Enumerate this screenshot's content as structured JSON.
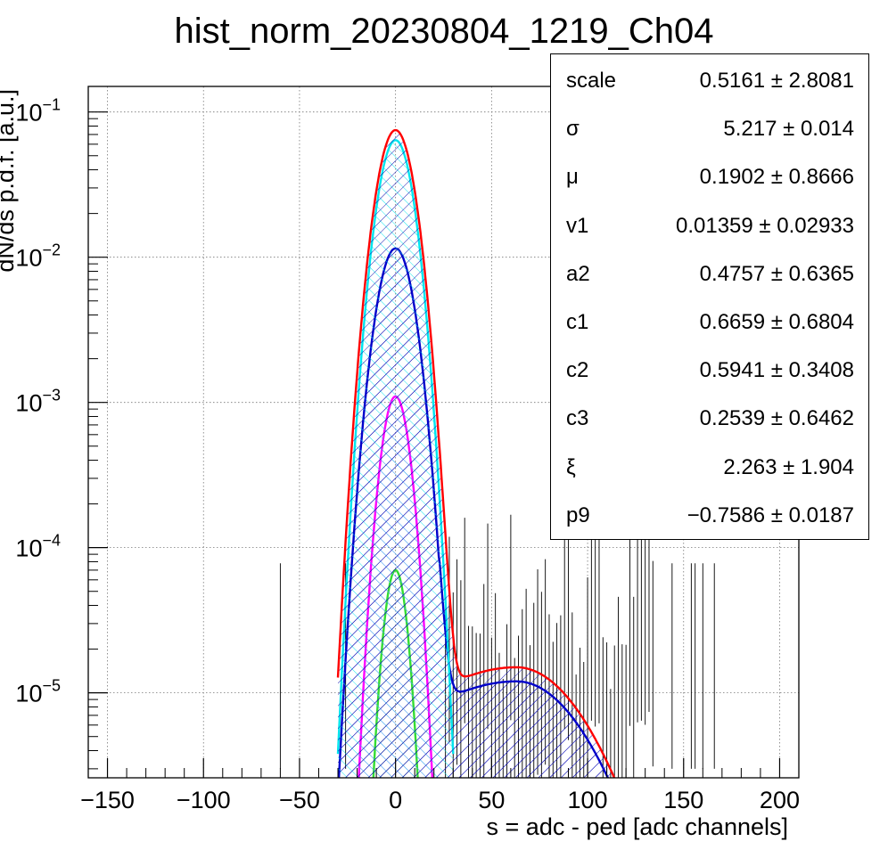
{
  "chart_data": {
    "type": "line",
    "title": "hist_norm_20230804_1219_Ch04",
    "xlabel": "s = adc - ped [adc channels]",
    "ylabel": "dN/ds p.d.f. [a.u.]",
    "xlim": [
      -160,
      210
    ],
    "ylim": [
      2.6e-06,
      0.15
    ],
    "yscale": "log",
    "grid": true,
    "x_ticks": [
      {
        "value": -150,
        "label": "−150"
      },
      {
        "value": -100,
        "label": "−100"
      },
      {
        "value": -50,
        "label": "−50"
      },
      {
        "value": 0,
        "label": "0"
      },
      {
        "value": 50,
        "label": "50"
      },
      {
        "value": 100,
        "label": "100"
      },
      {
        "value": 150,
        "label": "150"
      },
      {
        "value": 200,
        "label": "200"
      }
    ],
    "y_ticks": [
      {
        "value": 1e-05,
        "base": "10",
        "exp": "−5"
      },
      {
        "value": 0.0001,
        "base": "10",
        "exp": "−4"
      },
      {
        "value": 0.001,
        "base": "10",
        "exp": "−3"
      },
      {
        "value": 0.01,
        "base": "10",
        "exp": "−2"
      },
      {
        "value": 0.1,
        "base": "10",
        "exp": "−1"
      }
    ],
    "series": [
      {
        "color": "#ff0000",
        "sigma": 7.2,
        "mu": 0,
        "peak": 0.075,
        "tail": {
          "x0": 23,
          "xmax": 63,
          "peak": 1.5e-05,
          "end": 146,
          "y0": 1.05e-05
        }
      },
      {
        "color": "#00e5ee",
        "sigma": 6.8,
        "mu": 0,
        "peak": 0.064
      },
      {
        "color": "#0000cc",
        "sigma": 7.2,
        "mu": 0,
        "peak": 0.0115,
        "tail": {
          "x0": 23,
          "xmax": 63,
          "peak": 1.2e-05,
          "end": 146,
          "y0": 8.6e-06
        }
      },
      {
        "color": "#ff00ff",
        "sigma": 5.5,
        "mu": 0,
        "peak": 0.0011
      },
      {
        "color": "#33dd33",
        "sigma": 4.5,
        "mu": 0,
        "peak": 7e-05
      }
    ],
    "stats": [
      {
        "name": "scale",
        "value": "0.5161 ± 2.8081"
      },
      {
        "name": "σ",
        "value": "5.217 ± 0.014"
      },
      {
        "name": "μ",
        "value": "0.1902 ± 0.8666"
      },
      {
        "name": "v1",
        "value": "0.01359 ± 0.02933"
      },
      {
        "name": "a2",
        "value": "0.4757 ± 0.6365"
      },
      {
        "name": "c1",
        "value": "0.6659 ± 0.6804"
      },
      {
        "name": "c2",
        "value": "0.5941 ± 0.3408"
      },
      {
        "name": "c3",
        "value": "0.2539 ± 0.6462"
      },
      {
        "name": "ξ",
        "value": "2.263 ± 1.904"
      },
      {
        "name": "p9",
        "value": "−0.7586 ± 0.0187"
      }
    ]
  }
}
